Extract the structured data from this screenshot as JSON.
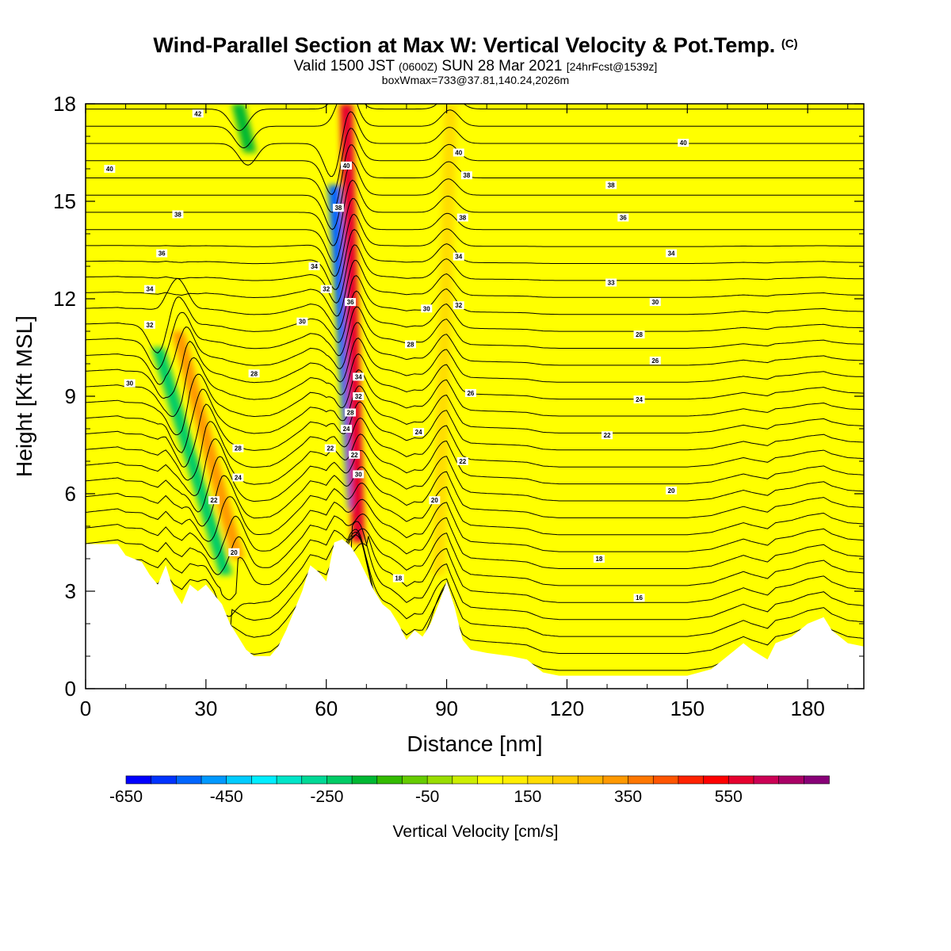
{
  "title": {
    "main": "Wind-Parallel Section at Max W: Vertical Velocity & Pot.Temp.",
    "main_mark": "(C)",
    "valid_a": "Valid 1500 JST",
    "valid_utc": "(0600Z)",
    "valid_b": "SUN 28 Mar 2021",
    "forecast": "[24hrFcst@1539z]",
    "box": "boxWmax=733@37.81,140.24,2026m"
  },
  "chart_data": {
    "type": "heatmap",
    "xlabel": "Distance [nm]",
    "ylabel": "Height [Kft MSL]",
    "xlim": [
      0,
      194
    ],
    "ylim": [
      0,
      18
    ],
    "xticks": [
      0,
      30,
      60,
      90,
      120,
      150,
      180
    ],
    "yticks": [
      0,
      3,
      6,
      9,
      12,
      15,
      18
    ],
    "colorbar": {
      "label": "Vertical Velocity [cm/s]",
      "range": [
        -650,
        750
      ],
      "step": 50,
      "tick_values": [
        -650,
        -450,
        -250,
        -50,
        150,
        350,
        550
      ],
      "tick_labels": [
        "-650",
        "-450",
        "-250",
        "-50",
        "150",
        "350",
        "550"
      ],
      "colors": [
        "#0000ff",
        "#0033ff",
        "#0066ff",
        "#0099ff",
        "#00ccff",
        "#00eeff",
        "#00e5c8",
        "#00d996",
        "#00cc66",
        "#00b833",
        "#33bb00",
        "#66cc00",
        "#99dd00",
        "#ccee00",
        "#ffff00",
        "#ffee00",
        "#ffdd00",
        "#ffcc00",
        "#ffb400",
        "#ff9900",
        "#ff7700",
        "#ff5500",
        "#ff2200",
        "#ff0000",
        "#e6002e",
        "#cc0055",
        "#aa0066",
        "#880077"
      ]
    },
    "terrain_kft": [
      [
        0,
        4.45
      ],
      [
        8,
        4.45
      ],
      [
        10,
        4.1
      ],
      [
        14,
        3.9
      ],
      [
        16,
        3.5
      ],
      [
        18,
        3.2
      ],
      [
        20,
        3.8
      ],
      [
        22,
        3.0
      ],
      [
        24,
        2.6
      ],
      [
        26,
        3.2
      ],
      [
        28,
        3.0
      ],
      [
        30,
        3.2
      ],
      [
        34,
        2.6
      ],
      [
        36,
        2.0
      ],
      [
        38,
        1.6
      ],
      [
        40,
        1.2
      ],
      [
        42,
        1.0
      ],
      [
        46,
        1.0
      ],
      [
        48,
        1.3
      ],
      [
        50,
        1.8
      ],
      [
        54,
        3.0
      ],
      [
        56,
        3.8
      ],
      [
        58,
        3.6
      ],
      [
        60,
        3.3
      ],
      [
        62,
        4.5
      ],
      [
        64,
        4.6
      ],
      [
        66,
        4.4
      ],
      [
        68,
        4.0
      ],
      [
        70,
        3.5
      ],
      [
        72,
        3.0
      ],
      [
        74,
        2.6
      ],
      [
        76,
        2.4
      ],
      [
        78,
        2.0
      ],
      [
        80,
        1.5
      ],
      [
        82,
        1.8
      ],
      [
        84,
        1.6
      ],
      [
        86,
        2.0
      ],
      [
        88,
        2.6
      ],
      [
        90,
        3.3
      ],
      [
        92,
        2.5
      ],
      [
        94,
        1.5
      ],
      [
        96,
        1.2
      ],
      [
        100,
        1.1
      ],
      [
        106,
        1.0
      ],
      [
        110,
        0.9
      ],
      [
        114,
        0.5
      ],
      [
        118,
        0.4
      ],
      [
        124,
        0.4
      ],
      [
        130,
        0.4
      ],
      [
        140,
        0.4
      ],
      [
        150,
        0.4
      ],
      [
        156,
        0.6
      ],
      [
        160,
        1.0
      ],
      [
        164,
        1.4
      ],
      [
        166,
        1.2
      ],
      [
        170,
        0.9
      ],
      [
        172,
        1.4
      ],
      [
        176,
        1.6
      ],
      [
        180,
        2.0
      ],
      [
        184,
        2.2
      ],
      [
        186,
        1.8
      ],
      [
        190,
        1.4
      ],
      [
        194,
        1.3
      ]
    ],
    "downdrafts": [
      {
        "x_bottom": 35,
        "x_top": 18,
        "y_bottom": 3.5,
        "y_top": 10.5,
        "w": -250
      },
      {
        "x_bottom": 67,
        "x_top": 62,
        "y_bottom": 5.5,
        "y_top": 15.5,
        "w": -550
      },
      {
        "x_bottom": 41,
        "x_top": 38,
        "y_bottom": 16.5,
        "y_top": 18,
        "w": -200
      }
    ],
    "updrafts": [
      {
        "x_bottom": 38,
        "x_top": 23,
        "y_bottom": 4.0,
        "y_top": 11.0,
        "w": 300
      },
      {
        "x_bottom": 68,
        "x_top": 65,
        "y_bottom": 4.5,
        "y_top": 18,
        "w": 550
      },
      {
        "x_bottom": 88,
        "x_top": 91,
        "y_bottom": 3.5,
        "y_top": 18,
        "w": 150
      }
    ],
    "contour_labels": [
      {
        "x": 28,
        "y": 17.7,
        "text": "42"
      },
      {
        "x": 6,
        "y": 16.0,
        "text": "40"
      },
      {
        "x": 23,
        "y": 14.6,
        "text": "38"
      },
      {
        "x": 19,
        "y": 13.4,
        "text": "36"
      },
      {
        "x": 16,
        "y": 12.3,
        "text": "34"
      },
      {
        "x": 16,
        "y": 11.2,
        "text": "32"
      },
      {
        "x": 11,
        "y": 9.4,
        "text": "30"
      },
      {
        "x": 38,
        "y": 7.4,
        "text": "28"
      },
      {
        "x": 38,
        "y": 6.5,
        "text": "24"
      },
      {
        "x": 32,
        "y": 5.8,
        "text": "22"
      },
      {
        "x": 37,
        "y": 4.2,
        "text": "20"
      },
      {
        "x": 57,
        "y": 13.0,
        "text": "34"
      },
      {
        "x": 54,
        "y": 11.3,
        "text": "30"
      },
      {
        "x": 60,
        "y": 12.3,
        "text": "32"
      },
      {
        "x": 42,
        "y": 9.7,
        "text": "28"
      },
      {
        "x": 61,
        "y": 7.4,
        "text": "22"
      },
      {
        "x": 65,
        "y": 16.1,
        "text": "40"
      },
      {
        "x": 63,
        "y": 14.8,
        "text": "38"
      },
      {
        "x": 66,
        "y": 11.9,
        "text": "36"
      },
      {
        "x": 68,
        "y": 9.6,
        "text": "34"
      },
      {
        "x": 68,
        "y": 9.0,
        "text": "32"
      },
      {
        "x": 66,
        "y": 8.5,
        "text": "28"
      },
      {
        "x": 65,
        "y": 8.0,
        "text": "24"
      },
      {
        "x": 67,
        "y": 7.2,
        "text": "22"
      },
      {
        "x": 68,
        "y": 6.6,
        "text": "30"
      },
      {
        "x": 85,
        "y": 11.7,
        "text": "30"
      },
      {
        "x": 81,
        "y": 10.6,
        "text": "28"
      },
      {
        "x": 83,
        "y": 7.9,
        "text": "24"
      },
      {
        "x": 87,
        "y": 5.8,
        "text": "20"
      },
      {
        "x": 78,
        "y": 3.4,
        "text": "18"
      },
      {
        "x": 93,
        "y": 16.5,
        "text": "40"
      },
      {
        "x": 95,
        "y": 15.8,
        "text": "38"
      },
      {
        "x": 94,
        "y": 14.5,
        "text": "38"
      },
      {
        "x": 93,
        "y": 13.3,
        "text": "34"
      },
      {
        "x": 93,
        "y": 11.8,
        "text": "32"
      },
      {
        "x": 96,
        "y": 9.1,
        "text": "26"
      },
      {
        "x": 94,
        "y": 7.0,
        "text": "22"
      },
      {
        "x": 149,
        "y": 16.8,
        "text": "40"
      },
      {
        "x": 131,
        "y": 15.5,
        "text": "38"
      },
      {
        "x": 134,
        "y": 14.5,
        "text": "36"
      },
      {
        "x": 146,
        "y": 13.4,
        "text": "34"
      },
      {
        "x": 131,
        "y": 12.5,
        "text": "33"
      },
      {
        "x": 142,
        "y": 11.9,
        "text": "30"
      },
      {
        "x": 138,
        "y": 10.9,
        "text": "28"
      },
      {
        "x": 142,
        "y": 10.1,
        "text": "26"
      },
      {
        "x": 138,
        "y": 8.9,
        "text": "24"
      },
      {
        "x": 130,
        "y": 7.8,
        "text": "22"
      },
      {
        "x": 146,
        "y": 6.1,
        "text": "20"
      },
      {
        "x": 128,
        "y": 4.0,
        "text": "18"
      },
      {
        "x": 138,
        "y": 2.8,
        "text": "16"
      }
    ]
  }
}
